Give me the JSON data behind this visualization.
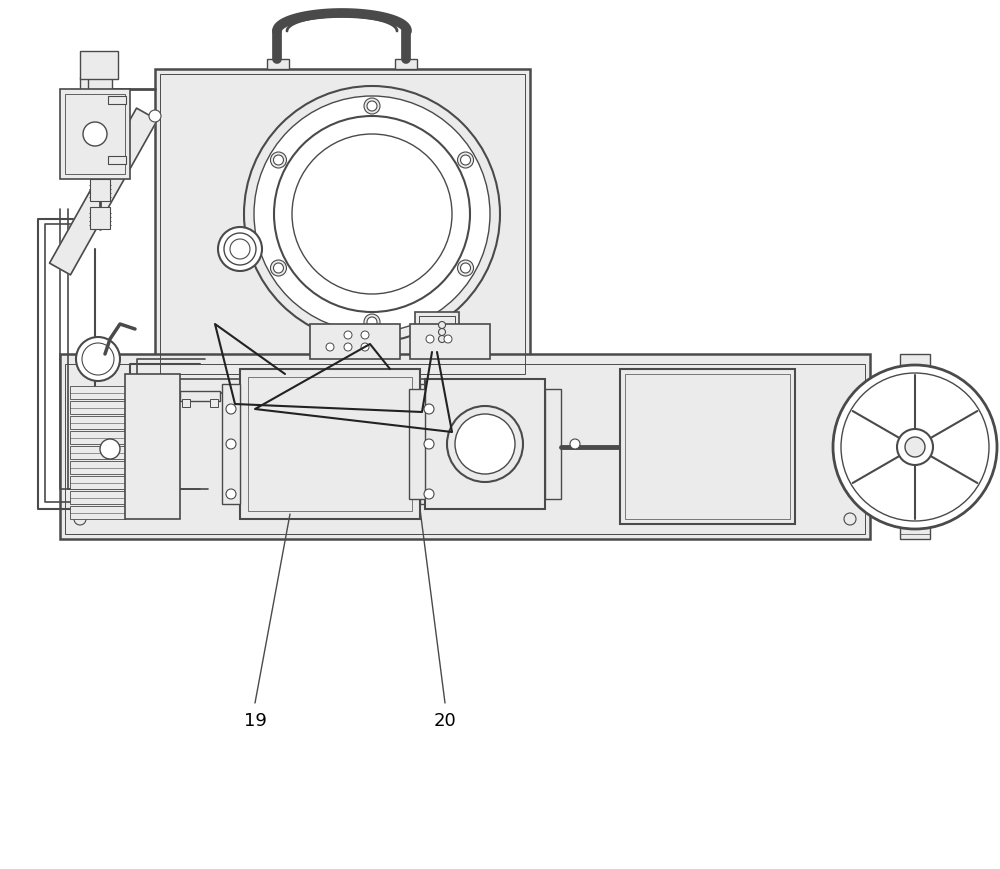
{
  "bg_color": "#ffffff",
  "line_color": "#4a4a4a",
  "fill_light": "#ebebeb",
  "fill_white": "#ffffff",
  "label_19": "19",
  "label_20": "20",
  "label_fontsize": 13,
  "fig_width": 10.0,
  "fig_height": 8.69
}
